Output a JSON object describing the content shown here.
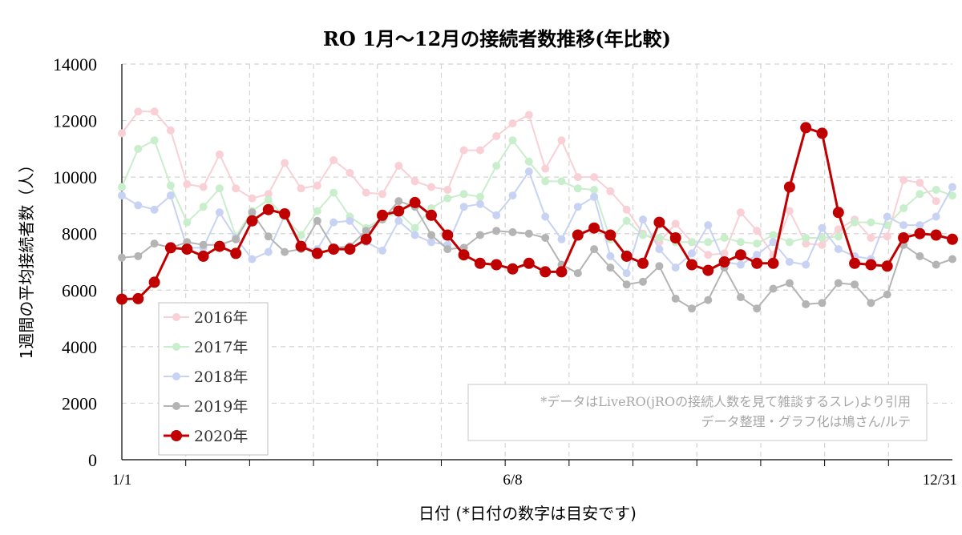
{
  "chart_data": {
    "type": "line",
    "title": "RO 1月～12月の接続者数推移(年比較)",
    "xlabel": "日付 (*日付の数字は目安です)",
    "ylabel": "1週間の平均接続者数（人）",
    "ylim": [
      0,
      14000
    ],
    "yticks": [
      0,
      2000,
      4000,
      6000,
      8000,
      10000,
      12000,
      14000
    ],
    "x_tick_labels": [
      {
        "index": 0,
        "label": "1/1"
      },
      {
        "index": 24,
        "label": "6/8"
      },
      {
        "index": 51,
        "label": "12/31"
      }
    ],
    "grid": true,
    "legend_position": "left-bottom",
    "note_lines": [
      "*データはLiveRO(jROの接続人数を見て雑談するスレ)より引用",
      "データ整理・グラフ化は鳩さん/ルテ"
    ],
    "series": [
      {
        "name": "2016年",
        "color": "#f8d0d6",
        "highlight": false,
        "values": [
          11550,
          12320,
          12320,
          11650,
          9750,
          9650,
          10800,
          9600,
          9250,
          9400,
          10500,
          9600,
          9700,
          10600,
          10150,
          9450,
          9400,
          10400,
          9850,
          9650,
          9550,
          10950,
          10950,
          11450,
          11900,
          12200,
          10300,
          11300,
          10000,
          10000,
          9500,
          8850,
          8000,
          7700,
          8350,
          7700,
          7250,
          7300,
          8750,
          8100,
          7250,
          8800,
          7650,
          7600,
          8150,
          8500,
          7850,
          7900,
          9900,
          9800,
          9150,
          null
        ]
      },
      {
        "name": "2017年",
        "color": "#c9eecb",
        "highlight": false,
        "values": [
          9650,
          11000,
          11300,
          9700,
          8400,
          8950,
          9600,
          7900,
          8800,
          9200,
          8600,
          7950,
          8800,
          9450,
          8600,
          8200,
          8550,
          8750,
          8200,
          8900,
          9250,
          9400,
          9300,
          10400,
          11300,
          10550,
          9850,
          9850,
          9600,
          9550,
          7800,
          8450,
          7950,
          7850,
          7700,
          7700,
          7700,
          7850,
          7700,
          7650,
          7950,
          7700,
          7850,
          7850,
          7900,
          8400,
          8400,
          8300,
          8900,
          9400,
          9550,
          9350
        ]
      },
      {
        "name": "2018年",
        "color": "#c8d2f2",
        "highlight": false,
        "values": [
          9350,
          9000,
          8850,
          9350,
          7500,
          7500,
          8750,
          7850,
          7100,
          7350,
          8650,
          7500,
          7450,
          8400,
          8450,
          7700,
          7400,
          8450,
          7950,
          7700,
          7600,
          8950,
          9050,
          8650,
          9350,
          10200,
          8600,
          7800,
          8950,
          9300,
          7200,
          6600,
          8500,
          7450,
          6800,
          7300,
          8300,
          7000,
          6900,
          7250,
          7700,
          7000,
          6900,
          8200,
          7450,
          7200,
          7100,
          8600,
          8300,
          8300,
          8600,
          9650
        ]
      },
      {
        "name": "2019年",
        "color": "#b4b4b4",
        "highlight": false,
        "values": [
          7150,
          7200,
          7650,
          7500,
          7700,
          7600,
          7600,
          7800,
          8750,
          7900,
          7350,
          7450,
          8450,
          7500,
          7550,
          8100,
          8500,
          9150,
          8950,
          7950,
          7450,
          7500,
          7950,
          8100,
          8050,
          8000,
          7850,
          6900,
          6600,
          7450,
          6800,
          6200,
          6300,
          6850,
          5700,
          5350,
          5650,
          6800,
          5750,
          5350,
          6050,
          6250,
          5500,
          5550,
          6250,
          6200,
          5550,
          5850,
          7600,
          7200,
          6900,
          7100
        ]
      },
      {
        "name": "2020年",
        "color": "#c00000",
        "highlight": true,
        "values": [
          5680,
          5700,
          6280,
          7500,
          7450,
          7200,
          7550,
          7300,
          8450,
          8850,
          8700,
          7550,
          7300,
          7450,
          7450,
          7800,
          8650,
          8800,
          9100,
          8650,
          7950,
          7250,
          6950,
          6900,
          6750,
          6950,
          6650,
          6650,
          7950,
          8200,
          7950,
          7200,
          6950,
          8400,
          7850,
          6900,
          6700,
          7000,
          7250,
          6950,
          6950,
          9650,
          11750,
          11550,
          8750,
          6950,
          6900,
          6850,
          7850,
          8000,
          7950,
          7800
        ]
      }
    ]
  }
}
